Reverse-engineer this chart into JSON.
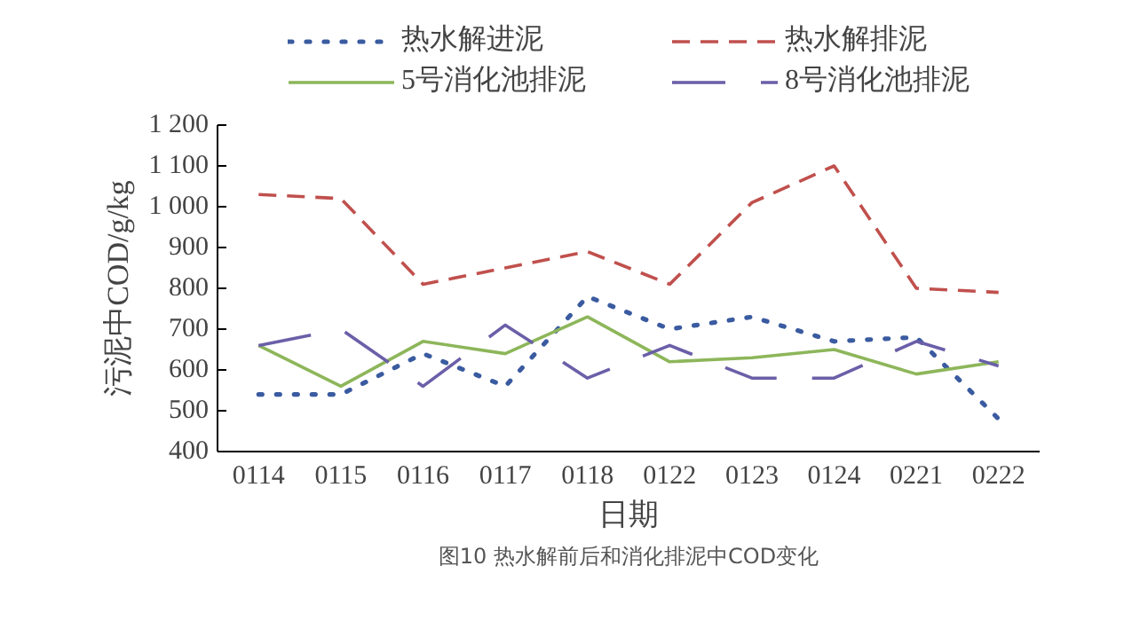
{
  "chart_data": {
    "type": "line",
    "xlabel": "日期",
    "ylabel": "污泥中COD/g/kg",
    "categories": [
      "0114",
      "0115",
      "0116",
      "0117",
      "0118",
      "0122",
      "0123",
      "0124",
      "0221",
      "0222"
    ],
    "ylim": [
      400,
      1200
    ],
    "yticks": [
      400,
      500,
      600,
      700,
      800,
      900,
      {
        "value": 1000,
        "label": "1 000"
      },
      {
        "value": 1100,
        "label": "1 100"
      },
      {
        "value": 1200,
        "label": "1 200"
      }
    ],
    "legend": "top",
    "grid": false,
    "series": [
      {
        "name": "热水解进泥",
        "color": "#3a5ba0",
        "line_style": "dotted",
        "values": [
          540,
          540,
          640,
          560,
          780,
          700,
          730,
          670,
          680,
          480
        ]
      },
      {
        "name": "热水解排泥",
        "color": "#c0504d",
        "line_style": "dashed",
        "values": [
          1030,
          1020,
          810,
          850,
          890,
          810,
          1010,
          1100,
          800,
          790
        ]
      },
      {
        "name": "5号消化池排泥",
        "color": "#8db65a",
        "line_style": "solid",
        "values": [
          660,
          560,
          670,
          640,
          730,
          620,
          630,
          650,
          590,
          620
        ]
      },
      {
        "name": "8号消化池排泥",
        "color": "#6a5fa8",
        "line_style": "longdash",
        "values": [
          660,
          700,
          560,
          710,
          580,
          660,
          580,
          580,
          670,
          610
        ]
      }
    ],
    "annotations": [
      "图10 热水解前后和消化排泥中COD变化"
    ]
  }
}
